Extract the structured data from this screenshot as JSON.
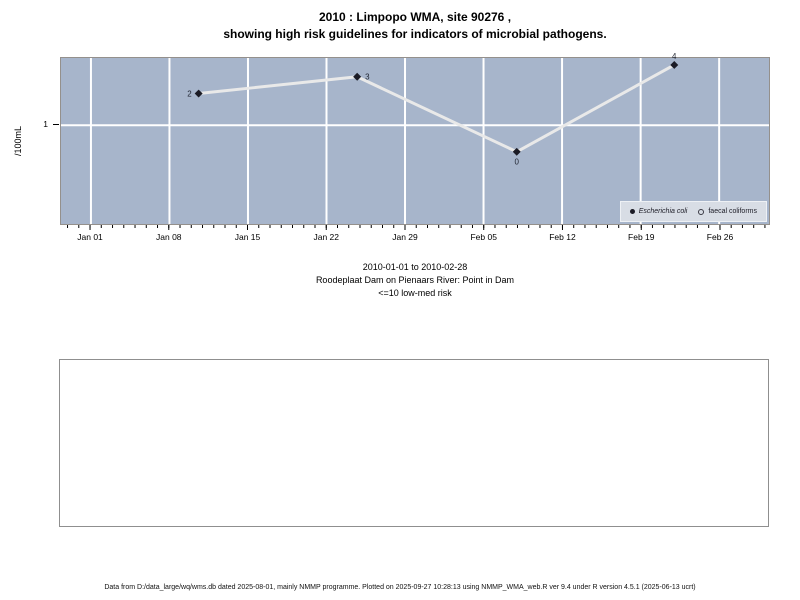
{
  "title": {
    "line1": "2010 : Limpopo WMA, site 90276 ,",
    "line2": "showing high risk guidelines for indicators of microbial pathogens."
  },
  "chart_data": {
    "type": "line",
    "title": "2010 : Limpopo WMA, site 90276 , showing high risk guidelines for indicators of microbial pathogens.",
    "ylabel": "/100mL",
    "y_scale": "log",
    "grid": true,
    "x_axis_range_est": [
      "2009-12-29",
      "2010-03-02"
    ],
    "x_ticks": [
      {
        "label": "Jan 01",
        "fx": 0.0423
      },
      {
        "label": "Jan 08",
        "fx": 0.1532
      },
      {
        "label": "Jan 15",
        "fx": 0.2641
      },
      {
        "label": "Jan 22",
        "fx": 0.375
      },
      {
        "label": "Jan 29",
        "fx": 0.4859
      },
      {
        "label": "Feb 05",
        "fx": 0.5968
      },
      {
        "label": "Feb 12",
        "fx": 0.7077
      },
      {
        "label": "Feb 19",
        "fx": 0.8187
      },
      {
        "label": "Feb 26",
        "fx": 0.9296
      }
    ],
    "minor_ticks": "daily",
    "y_ticks": [
      {
        "label": "1",
        "value": 1,
        "fy": 0.405
      }
    ],
    "series": [
      {
        "name": "Escherichia coli",
        "marker": "filled-diamond",
        "points": [
          {
            "label": "2",
            "value": 2,
            "date_est": "2010-01-11",
            "fx": 0.1944,
            "fy": 0.214,
            "label_side": "left"
          },
          {
            "label": "3",
            "value": 3,
            "date_est": "2010-01-25",
            "fx": 0.4183,
            "fy": 0.113,
            "label_side": "right"
          },
          {
            "label": "0",
            "value": 0,
            "date_est": "2010-02-08",
            "fx": 0.6437,
            "fy": 0.565,
            "label_side": "below"
          },
          {
            "label": "4",
            "value": 4,
            "date_est": "2010-02-22",
            "fx": 0.8662,
            "fy": 0.042,
            "label_side": "above"
          }
        ]
      },
      {
        "name": "faecal coliforms",
        "marker": "open-circle",
        "points": []
      }
    ],
    "legend": {
      "position": "bottom-right",
      "entries": [
        {
          "label": "Escherichia coli",
          "marker": "filled-dot",
          "italic": true
        },
        {
          "label": "faecal coliforms",
          "marker": "open-dot",
          "italic": false
        }
      ]
    },
    "colors": {
      "plot_bg": "#a7b5cb",
      "grid": "#ffffff",
      "line": "#e9e9e9",
      "marker": "#1b1b25",
      "point_label": "#1f2430",
      "border": "#94908c",
      "legend_bg": "#d8dde5",
      "legend_border": "#eef1f5"
    }
  },
  "subtitle": {
    "line1": "2010-01-01 to 2010-02-28",
    "line2": "Roodeplaat Dam on Pienaars River: Point in Dam",
    "line3": "<=10 low-med risk"
  },
  "footer": {
    "text": "Data from D:/data_large/wq/wms.db dated 2025-08-01, mainly NMMP programme. Plotted on 2025-09-27 10:28:13 using NMMP_WMA_web.R ver 9.4 under R version 4.5.1 (2025-06-13 ucrt)"
  }
}
